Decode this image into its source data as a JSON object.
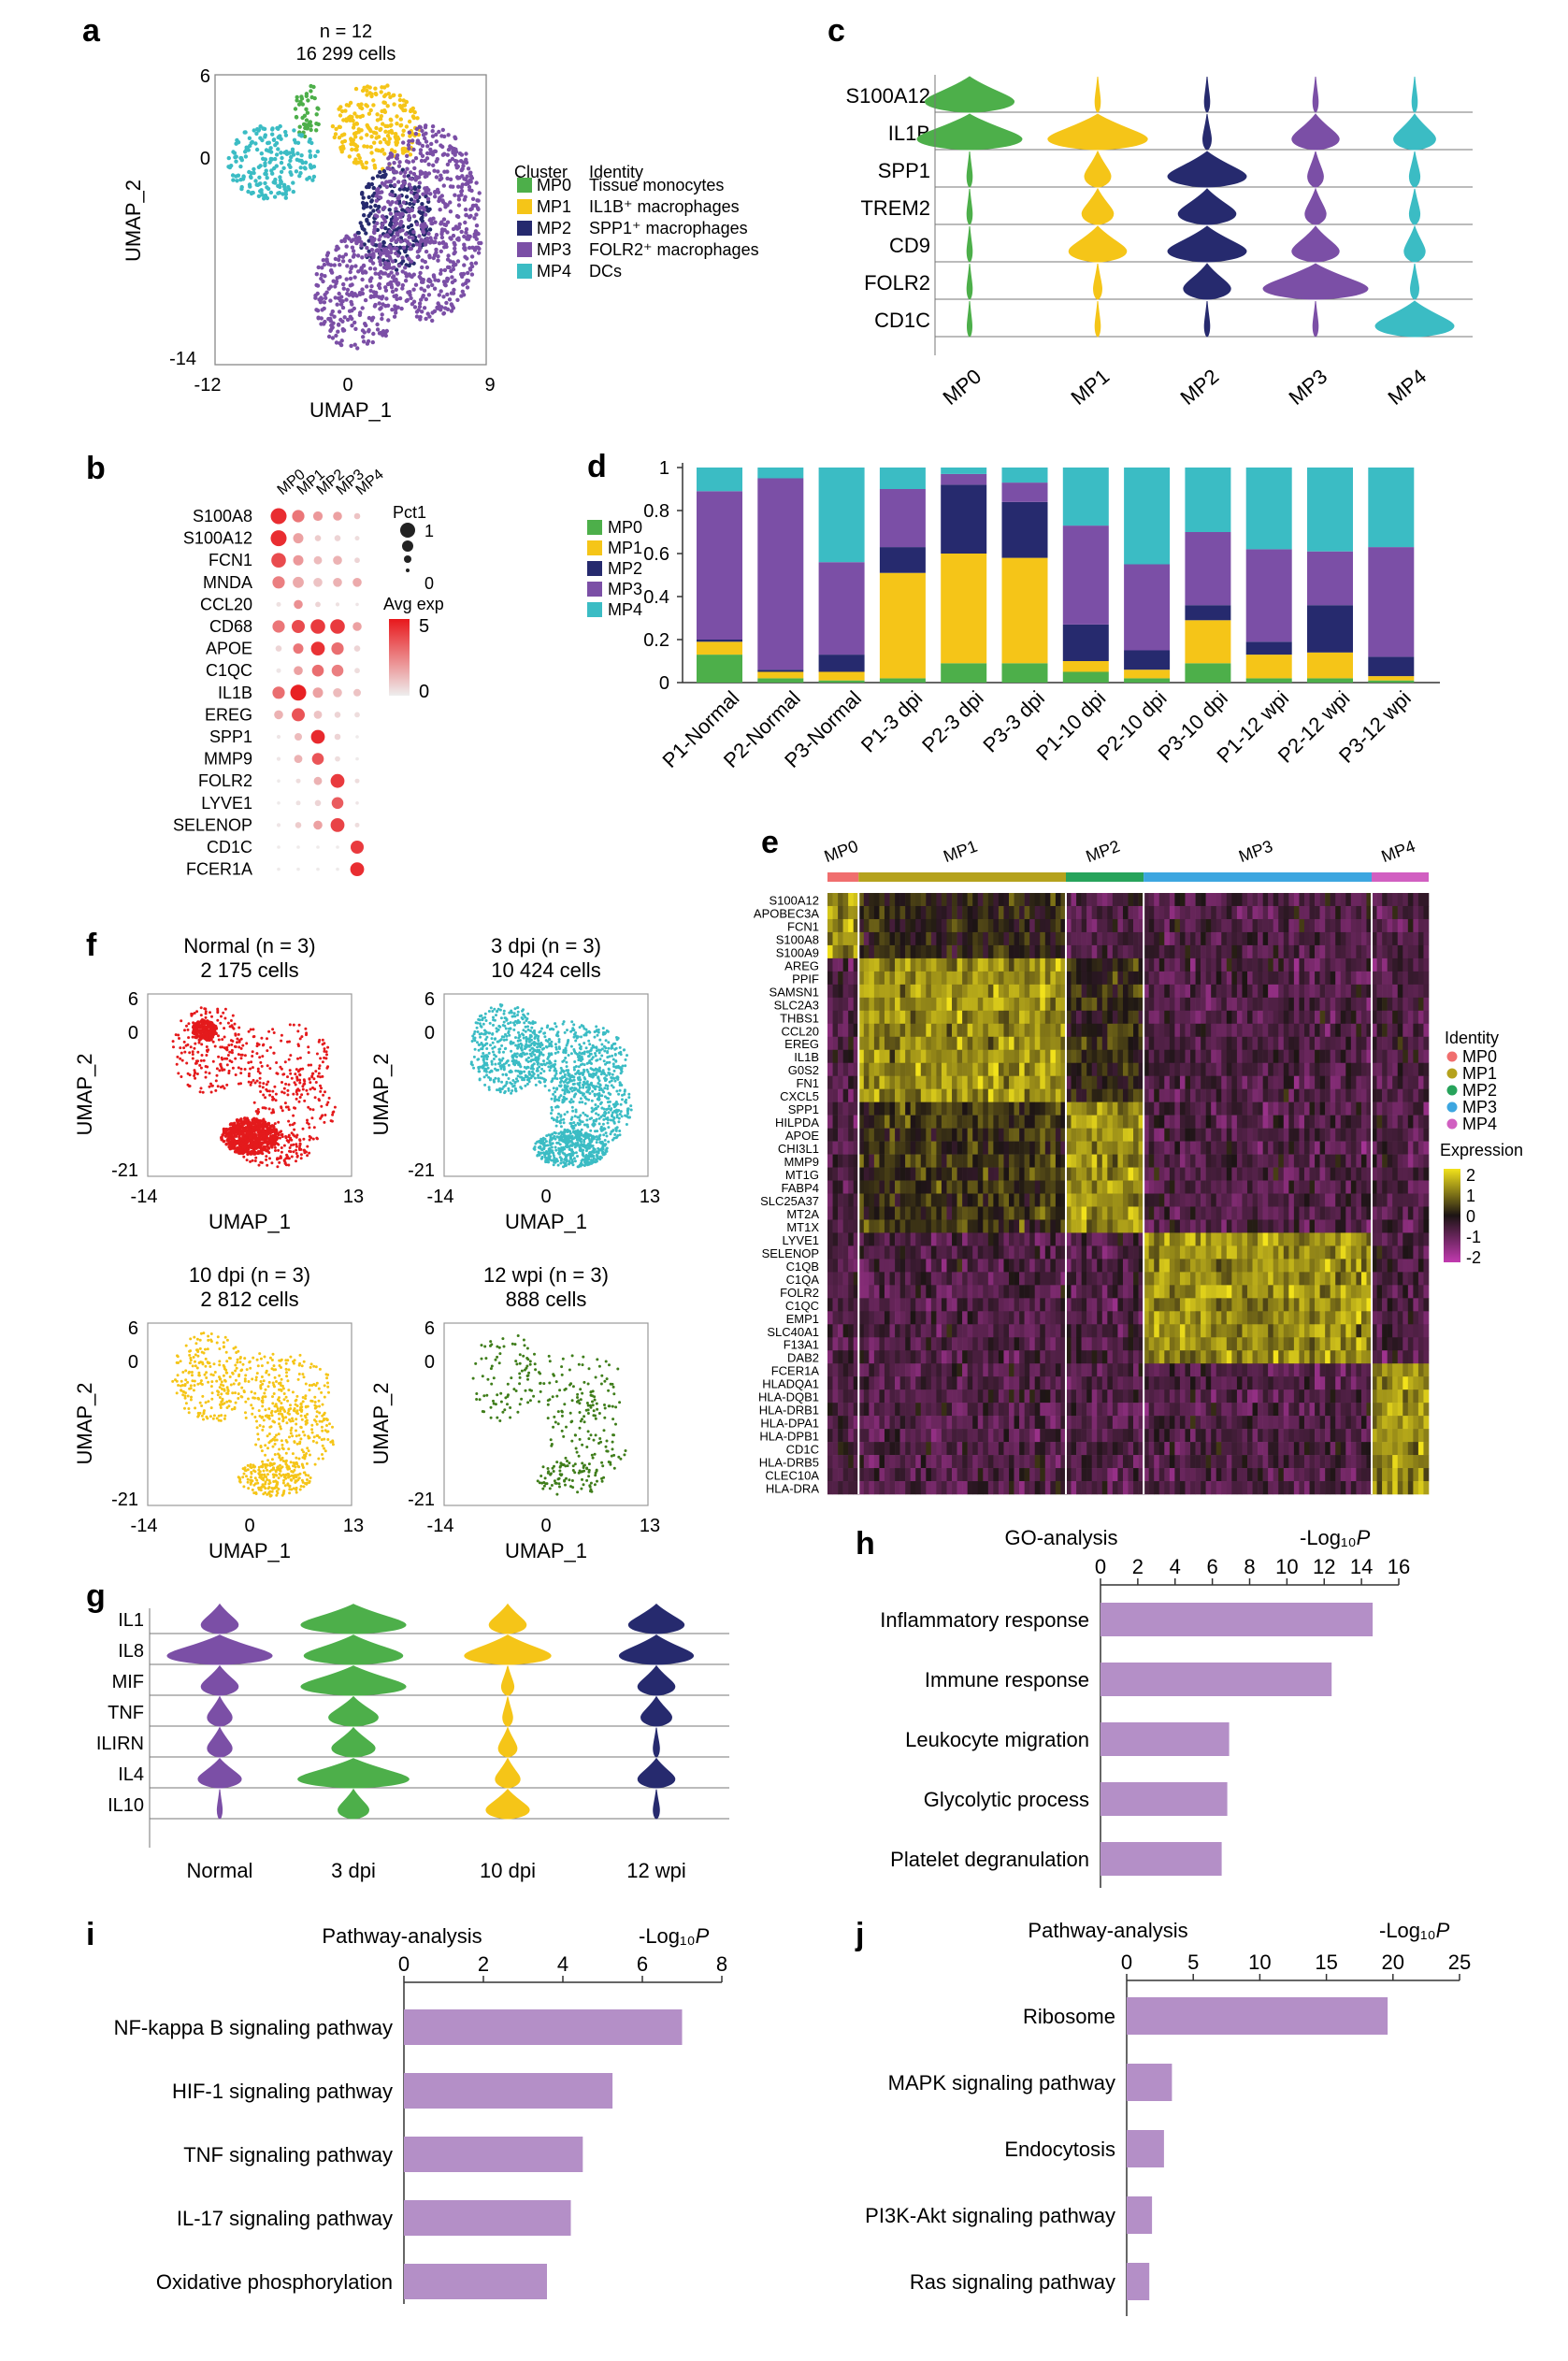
{
  "colors": {
    "MP0": "#4daf4a",
    "MP1": "#f5c518",
    "MP2": "#262a6e",
    "MP3": "#7b4fa6",
    "MP4": "#3bbcc4",
    "bar": "#b48fc7",
    "normal": "#e41a1c",
    "dpi3": "#3bbcc4",
    "dpi10": "#f5c518",
    "wpi12": "#3f7d1a",
    "heat_hi": "#f2e21b",
    "heat_mid": "#1c1414",
    "heat_lo": "#c23ab0",
    "id_MP0": "#f06e6e",
    "id_MP1": "#b5a21d",
    "id_MP2": "#27a35b",
    "id_MP3": "#3da6e0",
    "id_MP4": "#d15fc1"
  },
  "chart_data": [
    {
      "panel": "a",
      "type": "scatter",
      "title": "n = 12",
      "subtitle": "16 299 cells",
      "xlabel": "UMAP_1",
      "ylabel": "UMAP_2",
      "xticks": [
        "-12",
        "0",
        "9"
      ],
      "yticks": [
        "6",
        "0",
        "-14"
      ],
      "xlim": [
        -12,
        9
      ],
      "ylim": [
        -14,
        6
      ],
      "legend_title": "Cluster",
      "legend_title2": "Identity",
      "legend": [
        {
          "cluster": "MP0",
          "identity": "Tissue monocytes",
          "color": "#4daf4a"
        },
        {
          "cluster": "MP1",
          "identity": "IL1B⁺ macrophages",
          "color": "#f5c518"
        },
        {
          "cluster": "MP2",
          "identity": "SPP1⁺ macrophages",
          "color": "#262a6e"
        },
        {
          "cluster": "MP3",
          "identity": "FOLR2⁺ macrophages",
          "color": "#7b4fa6"
        },
        {
          "cluster": "MP4",
          "identity": "DCs",
          "color": "#3bbcc4"
        }
      ],
      "regions": [
        {
          "cluster": "MP0",
          "cx": -4.8,
          "cy": 3.5,
          "rx": 1.0,
          "ry": 2.0
        },
        {
          "cluster": "MP4",
          "cx": -7.5,
          "cy": 0.0,
          "rx": 3.6,
          "ry": 2.6
        },
        {
          "cluster": "MP1",
          "cx": 0.5,
          "cy": 2.4,
          "rx": 3.4,
          "ry": 3.0
        },
        {
          "cluster": "MP2",
          "cx": 1.8,
          "cy": -4.0,
          "rx": 3.0,
          "ry": 3.6
        },
        {
          "cluster": "MP3",
          "cx": 4.5,
          "cy": -4.2,
          "rx": 4.2,
          "ry": 6.8
        },
        {
          "cluster": "MP3",
          "cx": -1.0,
          "cy": -9.0,
          "rx": 3.4,
          "ry": 4.0
        }
      ]
    },
    {
      "panel": "b",
      "type": "dot",
      "clusters": [
        "MP0",
        "MP1",
        "MP2",
        "MP3",
        "MP4"
      ],
      "genes": [
        "S100A8",
        "S100A12",
        "FCN1",
        "MNDA",
        "CCL20",
        "CD68",
        "APOE",
        "C1QC",
        "IL1B",
        "EREG",
        "SPP1",
        "MMP9",
        "FOLR2",
        "LYVE1",
        "SELENOP",
        "CD1C",
        "FCER1A"
      ],
      "pct": [
        [
          1.0,
          0.75,
          0.55,
          0.5,
          0.3
        ],
        [
          1.0,
          0.6,
          0.3,
          0.3,
          0.2
        ],
        [
          0.9,
          0.6,
          0.45,
          0.5,
          0.25
        ],
        [
          0.75,
          0.65,
          0.5,
          0.5,
          0.5
        ],
        [
          0.2,
          0.5,
          0.25,
          0.15,
          0.1
        ],
        [
          0.75,
          0.8,
          0.9,
          0.9,
          0.5
        ],
        [
          0.3,
          0.6,
          0.85,
          0.75,
          0.3
        ],
        [
          0.2,
          0.5,
          0.7,
          0.7,
          0.25
        ],
        [
          0.75,
          1.0,
          0.6,
          0.5,
          0.4
        ],
        [
          0.5,
          0.8,
          0.45,
          0.3,
          0.25
        ],
        [
          0.15,
          0.4,
          0.85,
          0.3,
          0.1
        ],
        [
          0.15,
          0.45,
          0.7,
          0.25,
          0.1
        ],
        [
          0.1,
          0.2,
          0.45,
          0.85,
          0.2
        ],
        [
          0.1,
          0.2,
          0.3,
          0.7,
          0.1
        ],
        [
          0.15,
          0.3,
          0.5,
          0.85,
          0.2
        ],
        [
          0.1,
          0.1,
          0.1,
          0.1,
          0.8
        ],
        [
          0.1,
          0.1,
          0.1,
          0.1,
          0.85
        ]
      ],
      "exp": [
        [
          4.5,
          2.8,
          2.0,
          1.8,
          1.0
        ],
        [
          4.5,
          1.8,
          0.8,
          0.6,
          0.4
        ],
        [
          3.8,
          2.0,
          1.2,
          1.4,
          0.6
        ],
        [
          2.6,
          1.6,
          1.0,
          1.4,
          1.6
        ],
        [
          0.3,
          2.2,
          0.6,
          0.3,
          0.2
        ],
        [
          2.8,
          3.8,
          4.2,
          4.2,
          1.8
        ],
        [
          0.6,
          2.8,
          4.4,
          3.0,
          0.6
        ],
        [
          0.2,
          1.8,
          3.0,
          2.6,
          0.4
        ],
        [
          3.0,
          4.8,
          1.8,
          1.2,
          1.0
        ],
        [
          1.4,
          3.6,
          1.0,
          0.6,
          0.4
        ],
        [
          0.2,
          1.2,
          4.6,
          0.6,
          0.1
        ],
        [
          0.2,
          1.4,
          3.6,
          0.4,
          0.1
        ],
        [
          0.1,
          0.4,
          1.4,
          4.2,
          0.4
        ],
        [
          0.1,
          0.3,
          0.6,
          3.4,
          0.2
        ],
        [
          0.2,
          0.8,
          1.8,
          4.0,
          0.4
        ],
        [
          0.1,
          0.1,
          0.1,
          0.1,
          4.2
        ],
        [
          0.1,
          0.1,
          0.1,
          0.1,
          4.5
        ]
      ],
      "size_legend_title": "Pct1",
      "size_legend": [
        "1",
        "0"
      ],
      "color_legend_title": "Avg exp",
      "color_legend": [
        "5",
        "0"
      ]
    },
    {
      "panel": "c",
      "type": "violin",
      "genes": [
        "S100A12",
        "IL1B",
        "SPP1",
        "TREM2",
        "CD9",
        "FOLR2",
        "CD1C"
      ],
      "clusters": [
        "MP0",
        "MP1",
        "MP2",
        "MP3",
        "MP4"
      ],
      "widths": [
        [
          0.85,
          0.05,
          0.05,
          0.05,
          0.05
        ],
        [
          1.0,
          0.95,
          0.08,
          0.45,
          0.4
        ],
        [
          0.05,
          0.25,
          0.75,
          0.15,
          0.1
        ],
        [
          0.05,
          0.3,
          0.55,
          0.2,
          0.1
        ],
        [
          0.05,
          0.55,
          0.75,
          0.45,
          0.2
        ],
        [
          0.05,
          0.08,
          0.45,
          1.0,
          0.08
        ],
        [
          0.04,
          0.05,
          0.05,
          0.05,
          0.75
        ]
      ]
    },
    {
      "panel": "d",
      "type": "bar",
      "stacked": true,
      "categories": [
        "P1-Normal",
        "P2-Normal",
        "P3-Normal",
        "P1-3 dpi",
        "P2-3 dpi",
        "P3-3 dpi",
        "P1-10 dpi",
        "P2-10 dpi",
        "P3-10 dpi",
        "P1-12 wpi",
        "P2-12 wpi",
        "P3-12 wpi"
      ],
      "series": [
        {
          "name": "MP0",
          "values": [
            0.13,
            0.02,
            0.01,
            0.02,
            0.09,
            0.09,
            0.05,
            0.02,
            0.09,
            0.02,
            0.02,
            0.01
          ]
        },
        {
          "name": "MP1",
          "values": [
            0.06,
            0.03,
            0.04,
            0.49,
            0.51,
            0.49,
            0.05,
            0.04,
            0.2,
            0.11,
            0.12,
            0.02
          ]
        },
        {
          "name": "MP2",
          "values": [
            0.01,
            0.01,
            0.08,
            0.12,
            0.32,
            0.26,
            0.17,
            0.09,
            0.07,
            0.06,
            0.22,
            0.09
          ]
        },
        {
          "name": "MP3",
          "values": [
            0.69,
            0.89,
            0.43,
            0.27,
            0.05,
            0.09,
            0.46,
            0.4,
            0.34,
            0.43,
            0.25,
            0.51
          ]
        },
        {
          "name": "MP4",
          "values": [
            0.11,
            0.05,
            0.44,
            0.1,
            0.03,
            0.07,
            0.27,
            0.45,
            0.3,
            0.38,
            0.39,
            0.37
          ]
        }
      ],
      "yticks": [
        "0",
        "0.2",
        "0.4",
        "0.6",
        "0.8",
        "1"
      ],
      "ylim": [
        0,
        1
      ]
    },
    {
      "panel": "e",
      "type": "heatmap",
      "clusters": [
        {
          "name": "MP0",
          "cols": 6
        },
        {
          "name": "MP1",
          "cols": 40
        },
        {
          "name": "MP2",
          "cols": 15
        },
        {
          "name": "MP3",
          "cols": 44
        },
        {
          "name": "MP4",
          "cols": 11
        }
      ],
      "genes": [
        "S100A12",
        "APOBEC3A",
        "FCN1",
        "S100A8",
        "S100A9",
        "AREG",
        "PPIF",
        "SAMSN1",
        "SLC2A3",
        "THBS1",
        "CCL20",
        "EREG",
        "IL1B",
        "G0S2",
        "FN1",
        "CXCL5",
        "SPP1",
        "HILPDA",
        "APOE",
        "CHI3L1",
        "MMP9",
        "MT1G",
        "FABP4",
        "SLC25A37",
        "MT2A",
        "MT1X",
        "LYVE1",
        "SELENOP",
        "C1QB",
        "C1QA",
        "FOLR2",
        "C1QC",
        "EMP1",
        "SLC40A1",
        "F13A1",
        "DAB2",
        "FCER1A",
        "HLADQA1",
        "HLA-DQB1",
        "HLA-DRB1",
        "HLA-DPA1",
        "HLA-DPB1",
        "CD1C",
        "HLA-DRB5",
        "CLEC10A",
        "HLA-DRA"
      ],
      "gene_groups": [
        0,
        0,
        0,
        0,
        0,
        1,
        1,
        1,
        1,
        1,
        1,
        1,
        1,
        1,
        1,
        1,
        2,
        2,
        2,
        2,
        2,
        2,
        2,
        2,
        2,
        2,
        3,
        3,
        3,
        3,
        3,
        3,
        3,
        3,
        3,
        3,
        4,
        4,
        4,
        4,
        4,
        4,
        4,
        4,
        4,
        4
      ],
      "legend1_title": "Identity",
      "legend1": [
        "MP0",
        "MP1",
        "MP2",
        "MP3",
        "MP4"
      ],
      "legend2_title": "Expression",
      "legend2": [
        "2",
        "1",
        "0",
        "-1",
        "-2"
      ]
    },
    {
      "panel": "f",
      "type": "scatter",
      "subplots": [
        {
          "title": "Normal (n = 3)",
          "subtitle": "2 175 cells",
          "color_key": "normal",
          "density": 0.35,
          "xticks": [
            "-14",
            "13"
          ],
          "yticks": [
            "6",
            "0",
            "-21"
          ]
        },
        {
          "title": "3 dpi (n = 3)",
          "subtitle": "10 424 cells",
          "color_key": "dpi3",
          "density": 1.0,
          "xticks": [
            "-14",
            "0",
            "13"
          ],
          "yticks": [
            "6",
            "0",
            "-21"
          ]
        },
        {
          "title": "10 dpi (n = 3)",
          "subtitle": "2 812 cells",
          "color_key": "dpi10",
          "density": 0.5,
          "xticks": [
            "-14",
            "0",
            "13"
          ],
          "yticks": [
            "6",
            "0",
            "-21"
          ]
        },
        {
          "title": "12 wpi (n = 3)",
          "subtitle": "888 cells",
          "color_key": "wpi12",
          "density": 0.2,
          "xticks": [
            "-14",
            "0",
            "13"
          ],
          "yticks": [
            "6",
            "0",
            "-21"
          ]
        }
      ],
      "xlabel": "UMAP_1",
      "ylabel": "UMAP_2"
    },
    {
      "panel": "g",
      "type": "violin",
      "genes": [
        "IL1",
        "IL8",
        "MIF",
        "TNF",
        "ILIRN",
        "IL4",
        "IL10"
      ],
      "groups": [
        "Normal",
        "3 dpi",
        "10 dpi",
        "12 wpi"
      ],
      "group_colors": [
        "#7b4fa6",
        "#4daf4a",
        "#f5c518",
        "#262a6e"
      ],
      "widths": [
        [
          0.3,
          0.85,
          0.3,
          0.45
        ],
        [
          0.85,
          0.8,
          0.7,
          0.6
        ],
        [
          0.3,
          0.85,
          0.1,
          0.3
        ],
        [
          0.2,
          0.4,
          0.08,
          0.25
        ],
        [
          0.2,
          0.35,
          0.15,
          0.05
        ],
        [
          0.35,
          0.9,
          0.2,
          0.3
        ],
        [
          0.04,
          0.25,
          0.35,
          0.05
        ]
      ]
    },
    {
      "panel": "h",
      "type": "bar",
      "orientation": "horizontal",
      "title": "GO-analysis",
      "xlabel": "-Log₁₀P",
      "categories": [
        "Inflammatory response",
        "Immune response",
        "Leukocyte migration",
        "Glycolytic process",
        "Platelet degranulation"
      ],
      "values": [
        14.6,
        12.4,
        6.9,
        6.8,
        6.5
      ],
      "xticks": [
        "0",
        "2",
        "4",
        "6",
        "8",
        "10",
        "12",
        "14",
        "16"
      ],
      "xlim": [
        0,
        16
      ]
    },
    {
      "panel": "i",
      "type": "bar",
      "orientation": "horizontal",
      "title": "Pathway-analysis",
      "xlabel": "-Log₁₀P",
      "categories": [
        "NF-kappa B signaling pathway",
        "HIF-1 signaling pathway",
        "TNF signaling pathway",
        "IL-17 signaling pathway",
        "Oxidative phosphorylation"
      ],
      "values": [
        7.0,
        5.25,
        4.5,
        4.2,
        3.6
      ],
      "xticks": [
        "0",
        "2",
        "4",
        "6",
        "8"
      ],
      "xlim": [
        0,
        8
      ]
    },
    {
      "panel": "j",
      "type": "bar",
      "orientation": "horizontal",
      "title": "Pathway-analysis",
      "xlabel": "-Log₁₀P",
      "categories": [
        "Ribosome",
        "MAPK signaling pathway",
        "Endocytosis",
        "PI3K-Akt signaling pathway",
        "Ras signaling pathway"
      ],
      "values": [
        19.6,
        3.4,
        2.8,
        1.9,
        1.7
      ],
      "xticks": [
        "0",
        "5",
        "10",
        "15",
        "20",
        "25"
      ],
      "xlim": [
        0,
        25
      ]
    }
  ],
  "panel_labels": [
    "a",
    "b",
    "c",
    "d",
    "e",
    "f",
    "g",
    "h",
    "i",
    "j"
  ]
}
